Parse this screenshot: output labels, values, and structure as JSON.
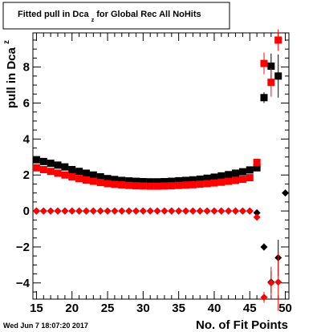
{
  "chart_data": {
    "type": "scatter",
    "title_main": "Fitted pull in Dca",
    "title_sub": "z",
    "title_rest": "  for Global Rec All NoHits",
    "xlabel": "No. of Fit Points",
    "ylabel_main": "pull in Dca",
    "ylabel_sub": "z",
    "footer": "Wed Jun  7 18:07:20 2017",
    "xlim": [
      14.5,
      50.5
    ],
    "ylim": [
      -4.9,
      9.9
    ],
    "x_ticks": [
      15,
      20,
      25,
      30,
      35,
      40,
      45,
      50
    ],
    "y_ticks": [
      -4,
      -2,
      0,
      2,
      4,
      6,
      8
    ],
    "grid": false,
    "series": [
      {
        "marker": "square",
        "color": "#000000",
        "points": [
          [
            15,
            2.85,
            0.05
          ],
          [
            16,
            2.75,
            0.05
          ],
          [
            17,
            2.65,
            0.05
          ],
          [
            18,
            2.55,
            0.05
          ],
          [
            19,
            2.45,
            0.05
          ],
          [
            20,
            2.3,
            0.05
          ],
          [
            21,
            2.2,
            0.05
          ],
          [
            22,
            2.1,
            0.05
          ],
          [
            23,
            2.0,
            0.05
          ],
          [
            24,
            1.9,
            0.05
          ],
          [
            25,
            1.8,
            0.05
          ],
          [
            26,
            1.75,
            0.05
          ],
          [
            27,
            1.7,
            0.05
          ],
          [
            28,
            1.67,
            0.05
          ],
          [
            29,
            1.65,
            0.05
          ],
          [
            30,
            1.63,
            0.05
          ],
          [
            31,
            1.62,
            0.05
          ],
          [
            32,
            1.62,
            0.05
          ],
          [
            33,
            1.63,
            0.05
          ],
          [
            34,
            1.65,
            0.05
          ],
          [
            35,
            1.68,
            0.05
          ],
          [
            36,
            1.7,
            0.05
          ],
          [
            37,
            1.73,
            0.05
          ],
          [
            38,
            1.77,
            0.05
          ],
          [
            39,
            1.82,
            0.05
          ],
          [
            40,
            1.88,
            0.05
          ],
          [
            41,
            1.95,
            0.05
          ],
          [
            42,
            2.02,
            0.05
          ],
          [
            43,
            2.1,
            0.05
          ],
          [
            44,
            2.18,
            0.05
          ],
          [
            45,
            2.28,
            0.05
          ],
          [
            46,
            2.4,
            0.08
          ],
          [
            47,
            6.3,
            0.3
          ],
          [
            48,
            8.05,
            0.7
          ],
          [
            49,
            7.5,
            1.2
          ]
        ]
      },
      {
        "marker": "square",
        "color": "#ff0000",
        "points": [
          [
            15,
            2.4,
            0.05
          ],
          [
            16,
            2.3,
            0.05
          ],
          [
            17,
            2.2,
            0.05
          ],
          [
            18,
            2.1,
            0.05
          ],
          [
            19,
            2.0,
            0.05
          ],
          [
            20,
            1.9,
            0.05
          ],
          [
            21,
            1.8,
            0.05
          ],
          [
            22,
            1.72,
            0.05
          ],
          [
            23,
            1.65,
            0.05
          ],
          [
            24,
            1.58,
            0.05
          ],
          [
            25,
            1.52,
            0.05
          ],
          [
            26,
            1.48,
            0.05
          ],
          [
            27,
            1.45,
            0.05
          ],
          [
            28,
            1.42,
            0.05
          ],
          [
            29,
            1.4,
            0.05
          ],
          [
            30,
            1.39,
            0.05
          ],
          [
            31,
            1.38,
            0.05
          ],
          [
            32,
            1.38,
            0.05
          ],
          [
            33,
            1.39,
            0.05
          ],
          [
            34,
            1.4,
            0.05
          ],
          [
            35,
            1.42,
            0.05
          ],
          [
            36,
            1.44,
            0.05
          ],
          [
            37,
            1.46,
            0.05
          ],
          [
            38,
            1.49,
            0.05
          ],
          [
            39,
            1.52,
            0.05
          ],
          [
            40,
            1.56,
            0.05
          ],
          [
            41,
            1.6,
            0.05
          ],
          [
            42,
            1.65,
            0.05
          ],
          [
            43,
            1.7,
            0.05
          ],
          [
            44,
            1.76,
            0.05
          ],
          [
            45,
            1.85,
            0.05
          ],
          [
            46,
            2.7,
            0.1
          ],
          [
            47,
            8.2,
            0.6
          ],
          [
            48,
            7.15,
            0.8
          ],
          [
            49,
            9.5,
            0.6
          ]
        ]
      },
      {
        "marker": "diamond",
        "color": "#000000",
        "points": [
          [
            15,
            0.0,
            0.05
          ],
          [
            16,
            0.0,
            0.05
          ],
          [
            17,
            0.0,
            0.05
          ],
          [
            18,
            0.0,
            0.05
          ],
          [
            19,
            0.0,
            0.05
          ],
          [
            20,
            0.0,
            0.05
          ],
          [
            21,
            0.0,
            0.05
          ],
          [
            22,
            0.0,
            0.05
          ],
          [
            23,
            0.0,
            0.05
          ],
          [
            24,
            0.0,
            0.05
          ],
          [
            25,
            0.0,
            0.05
          ],
          [
            26,
            0.0,
            0.05
          ],
          [
            27,
            0.0,
            0.05
          ],
          [
            28,
            0.0,
            0.05
          ],
          [
            29,
            0.0,
            0.05
          ],
          [
            30,
            0.0,
            0.05
          ],
          [
            31,
            0.0,
            0.05
          ],
          [
            32,
            0.0,
            0.05
          ],
          [
            33,
            0.0,
            0.05
          ],
          [
            34,
            0.0,
            0.05
          ],
          [
            35,
            0.0,
            0.05
          ],
          [
            36,
            0.0,
            0.05
          ],
          [
            37,
            0.0,
            0.05
          ],
          [
            38,
            0.0,
            0.05
          ],
          [
            39,
            0.0,
            0.05
          ],
          [
            40,
            0.0,
            0.05
          ],
          [
            41,
            0.0,
            0.05
          ],
          [
            42,
            0.0,
            0.05
          ],
          [
            43,
            0.0,
            0.05
          ],
          [
            44,
            0.0,
            0.05
          ],
          [
            45,
            0.0,
            0.05
          ],
          [
            46,
            -0.1,
            0.1
          ],
          [
            47,
            -2.0,
            0.2
          ],
          [
            48,
            -3.95,
            0.6
          ],
          [
            49,
            -2.6,
            1.0
          ],
          [
            50,
            1.0,
            0.1
          ]
        ]
      },
      {
        "marker": "diamond",
        "color": "#ff0000",
        "points": [
          [
            15,
            0.0,
            0.05
          ],
          [
            16,
            0.0,
            0.05
          ],
          [
            17,
            0.0,
            0.05
          ],
          [
            18,
            0.0,
            0.05
          ],
          [
            19,
            0.0,
            0.05
          ],
          [
            20,
            0.0,
            0.05
          ],
          [
            21,
            0.0,
            0.05
          ],
          [
            22,
            0.0,
            0.05
          ],
          [
            23,
            0.0,
            0.05
          ],
          [
            24,
            0.0,
            0.05
          ],
          [
            25,
            0.0,
            0.05
          ],
          [
            26,
            0.0,
            0.05
          ],
          [
            27,
            0.0,
            0.05
          ],
          [
            28,
            0.0,
            0.05
          ],
          [
            29,
            0.0,
            0.05
          ],
          [
            30,
            0.0,
            0.05
          ],
          [
            31,
            0.0,
            0.05
          ],
          [
            32,
            0.0,
            0.05
          ],
          [
            33,
            0.0,
            0.05
          ],
          [
            34,
            0.0,
            0.05
          ],
          [
            35,
            0.0,
            0.05
          ],
          [
            36,
            0.0,
            0.05
          ],
          [
            37,
            0.0,
            0.05
          ],
          [
            38,
            0.0,
            0.05
          ],
          [
            39,
            0.0,
            0.05
          ],
          [
            40,
            0.0,
            0.05
          ],
          [
            41,
            0.0,
            0.05
          ],
          [
            42,
            0.0,
            0.05
          ],
          [
            43,
            0.0,
            0.05
          ],
          [
            44,
            0.0,
            0.05
          ],
          [
            45,
            0.0,
            0.05
          ],
          [
            46,
            -0.35,
            0.15
          ],
          [
            47,
            -4.8,
            0.3
          ],
          [
            48,
            -4.0,
            0.9
          ],
          [
            49,
            -3.95,
            1.6
          ]
        ]
      }
    ]
  }
}
